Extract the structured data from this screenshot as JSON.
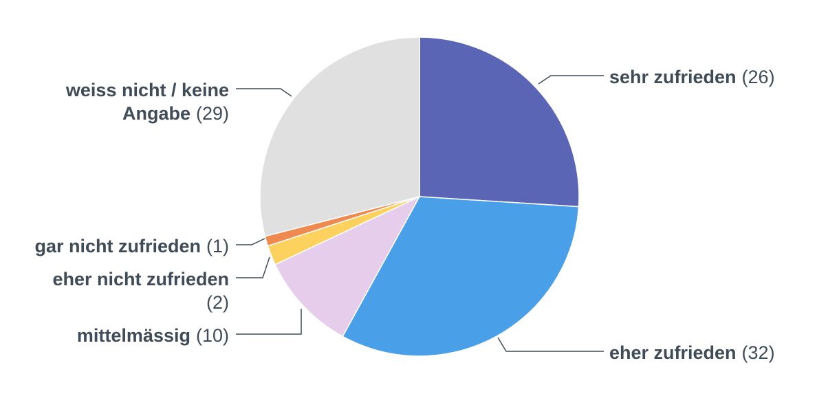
{
  "chart_data": {
    "type": "pie",
    "slices": [
      {
        "label": "sehr zufrieden",
        "value": 26,
        "color": "#5a66b5",
        "count_text": "(26)"
      },
      {
        "label": "eher zufrieden",
        "value": 32,
        "color": "#4aa0e8",
        "count_text": "(32)"
      },
      {
        "label": "mittelmässig",
        "value": 10,
        "color": "#e6cdec",
        "count_text": "(10)"
      },
      {
        "label": "eher nicht zufrieden",
        "value": 2,
        "color": "#fcd15d",
        "count_text": "(2)"
      },
      {
        "label": "gar nicht zufrieden",
        "value": 1,
        "color": "#ee8a4f",
        "count_text": "(1)"
      },
      {
        "label": "weiss nicht / keine Angabe",
        "value": 29,
        "color": "#e0e0e0",
        "count_text": "(29)"
      }
    ]
  },
  "labels": {
    "sehr": {
      "name": "sehr zufrieden",
      "count": "(26)"
    },
    "eher": {
      "name": "eher zufrieden",
      "count": "(32)"
    },
    "mittel": {
      "name": "mittelmässig",
      "count": "(10)"
    },
    "ehernicht_line1": "eher nicht zufrieden",
    "ehernicht_line2": "(2)",
    "garnicht": {
      "name": "gar nicht zufrieden",
      "count": "(1)"
    },
    "weiss_line1": "weiss nicht / keine",
    "weiss_line2_name": "Angabe",
    "weiss_line2_count": "(29)"
  }
}
